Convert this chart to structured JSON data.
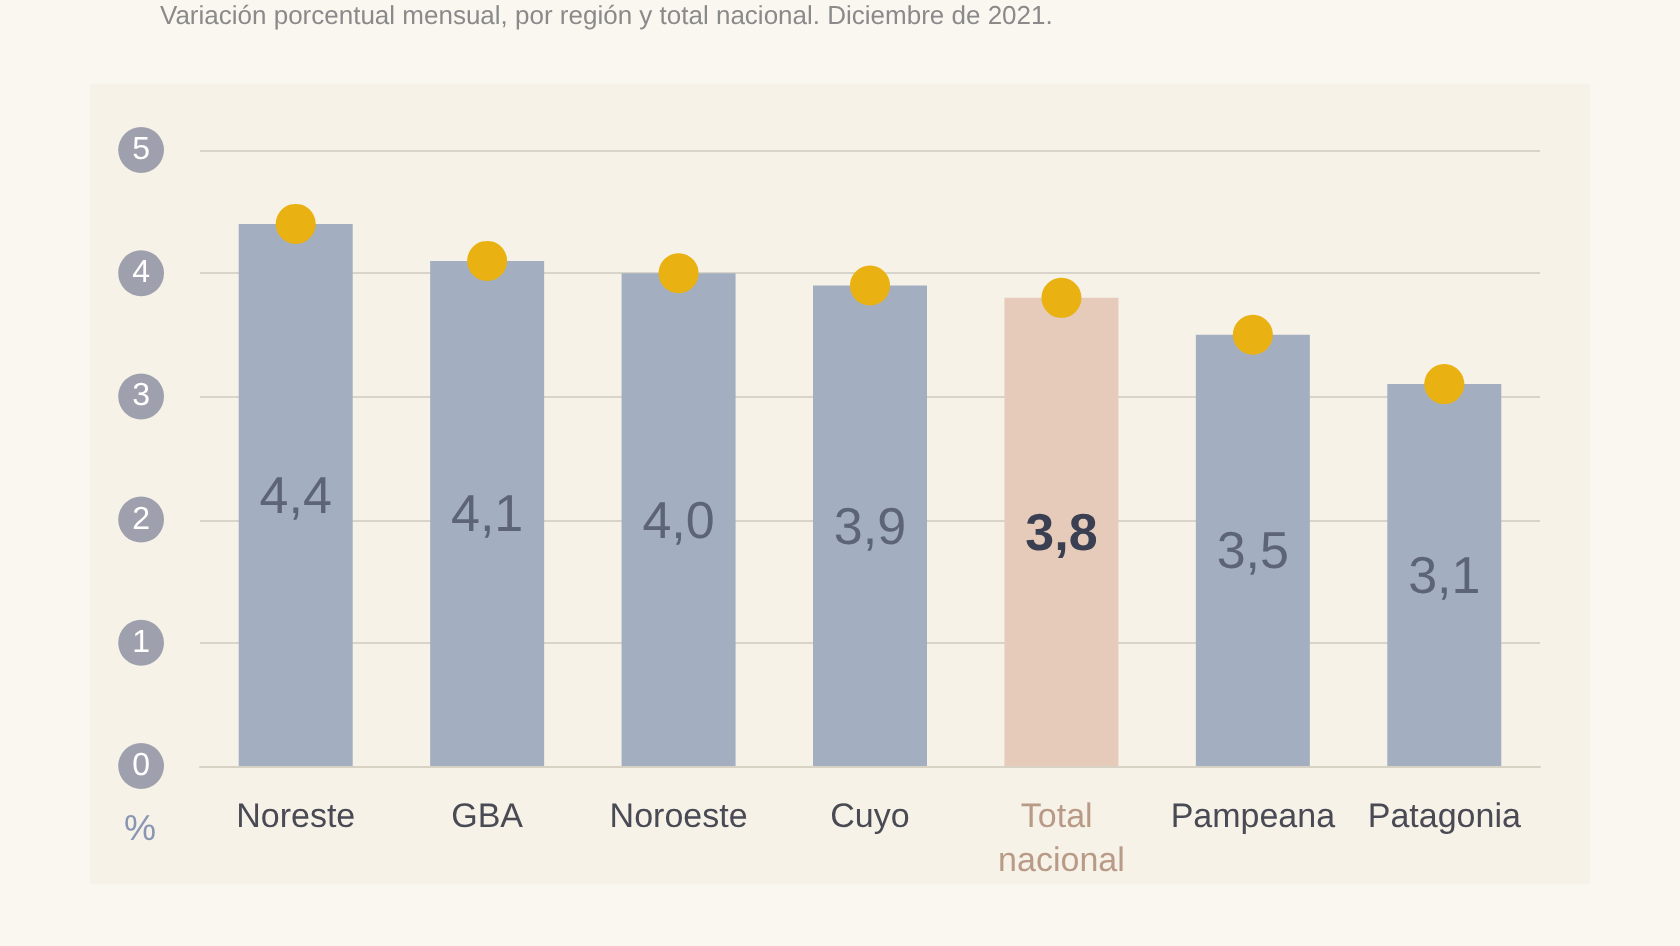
{
  "chart_data": {
    "type": "bar",
    "subtitle": "Variación porcentual mensual, por región y total nacional. Diciembre de 2021.",
    "ylabel": "%",
    "categories": [
      "Noreste",
      "GBA",
      "Noroeste",
      "Cuyo",
      "Total nacional",
      "Pampeana",
      "Patagonia"
    ],
    "series": [
      {
        "values": [
          4.4,
          4.1,
          4.0,
          3.9,
          3.8,
          3.5,
          3.1
        ],
        "colors": [
          "#a3afc0",
          "#a3afc0",
          "#a3afc0",
          "#a3afc0",
          "#e6cbbb",
          "#a3afc0",
          "#a3afc0"
        ],
        "value_labels": [
          "4,4",
          "4,1",
          "4,0",
          "3,9",
          "3,8",
          "3,5",
          "3,1"
        ]
      },
      {
        "type": "scatter",
        "x": [
          "Noreste",
          "GBA",
          "Noroeste",
          "Cuyo",
          "Total nacional",
          "Pampeana",
          "Patagonia"
        ],
        "values": [
          4.4,
          4.1,
          4.0,
          3.9,
          3.8,
          3.5,
          3.1
        ],
        "color": "#e9b111",
        "marker": "circle"
      }
    ],
    "ylim": [
      0,
      5
    ],
    "yticks": [
      0,
      1,
      2,
      3,
      4,
      5
    ],
    "grid": "y"
  }
}
